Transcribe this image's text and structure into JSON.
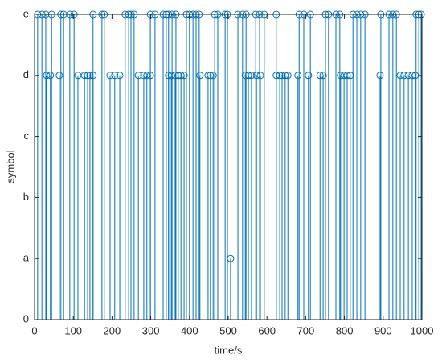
{
  "chart_data": {
    "type": "stem",
    "xlabel": "time/s",
    "ylabel": "symbol",
    "color": "#0072BD",
    "x": [
      8,
      19,
      29,
      31,
      41,
      44,
      64,
      68,
      75,
      91,
      102,
      112,
      129,
      137,
      143,
      151,
      151,
      174,
      180,
      195,
      207,
      220,
      234,
      243,
      249,
      257,
      268,
      282,
      290,
      299,
      299,
      311,
      332,
      340,
      346,
      346,
      353,
      355,
      363,
      365,
      371,
      378,
      386,
      392,
      400,
      409,
      417,
      425,
      427,
      448,
      454,
      461,
      465,
      473,
      492,
      498,
      506,
      525,
      537,
      544,
      546,
      552,
      560,
      571,
      573,
      581,
      583,
      593,
      624,
      624,
      633,
      639,
      647,
      654,
      680,
      683,
      695,
      707,
      712,
      737,
      745,
      751,
      759,
      778,
      788,
      790,
      799,
      807,
      815,
      822,
      832,
      842,
      853,
      892,
      894,
      915,
      925,
      934,
      944,
      954,
      965,
      975,
      983,
      985,
      992,
      998
    ],
    "values": [
      5,
      5,
      5,
      4,
      4,
      5,
      4,
      5,
      5,
      5,
      5,
      4,
      4,
      4,
      4,
      5,
      4,
      5,
      5,
      4,
      4,
      4,
      5,
      5,
      5,
      5,
      4,
      4,
      4,
      5,
      4,
      5,
      5,
      5,
      5,
      4,
      4,
      5,
      4,
      5,
      4,
      4,
      4,
      5,
      5,
      5,
      5,
      5,
      4,
      4,
      4,
      4,
      5,
      5,
      5,
      5,
      1,
      5,
      5,
      4,
      5,
      4,
      4,
      5,
      4,
      5,
      4,
      5,
      5,
      4,
      4,
      4,
      4,
      4,
      4,
      5,
      5,
      4,
      5,
      4,
      4,
      5,
      5,
      5,
      5,
      4,
      4,
      4,
      4,
      5,
      5,
      5,
      5,
      4,
      5,
      5,
      5,
      5,
      4,
      4,
      4,
      4,
      4,
      5,
      5,
      5
    ],
    "xlim": [
      0,
      1000
    ],
    "xticks": [
      0,
      100,
      200,
      300,
      400,
      500,
      600,
      700,
      800,
      900,
      1000
    ],
    "ylim": [
      0,
      5
    ],
    "yticks": [
      0,
      {
        "value": 1,
        "label": "a"
      },
      {
        "value": 2,
        "label": "b"
      },
      {
        "value": 3,
        "label": "c"
      },
      {
        "value": 4,
        "label": "d"
      },
      {
        "value": 5,
        "label": "e"
      }
    ]
  }
}
